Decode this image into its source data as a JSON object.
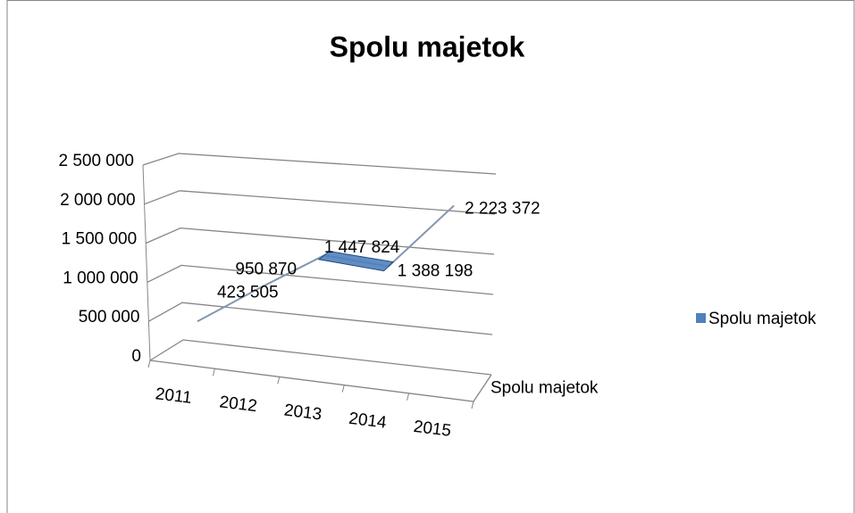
{
  "chart_data": {
    "type": "line",
    "title": "Spolu majetok",
    "categories": [
      "2011",
      "2012",
      "2013",
      "2014",
      "2015"
    ],
    "series": [
      {
        "name": "Spolu majetok",
        "color": "#4f81bd",
        "values": [
          423505,
          950870,
          1447824,
          1388198,
          2223372
        ],
        "value_labels": [
          "423 505",
          "950 870",
          "1 447 824",
          "1 388 198",
          "2 223 372"
        ]
      }
    ],
    "ylim": [
      0,
      2500000
    ],
    "yticks": [
      0,
      {
        "value": 500000,
        "label": "500 000"
      },
      {
        "value": 1000000,
        "label": "1 000 000"
      },
      {
        "value": 1500000,
        "label": "1 500 000"
      },
      {
        "value": 2000000,
        "label": "2 000 000"
      },
      {
        "value": 2500000,
        "label": "2 500 000"
      }
    ],
    "grid": true,
    "legend": "right"
  }
}
